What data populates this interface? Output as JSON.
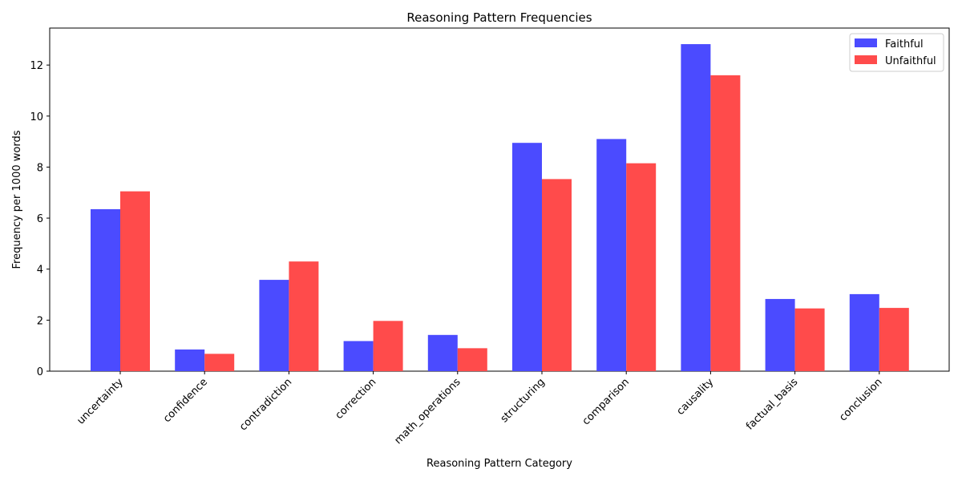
{
  "chart_data": {
    "type": "bar",
    "title": "Reasoning Pattern Frequencies",
    "xlabel": "Reasoning Pattern Category",
    "ylabel": "Frequency per 1000 words",
    "categories": [
      "uncertainty",
      "confidence",
      "contradiction",
      "correction",
      "math_operations",
      "structuring",
      "comparison",
      "causality",
      "factual_basis",
      "conclusion"
    ],
    "series": [
      {
        "name": "Faithful",
        "color": "#4b4bff",
        "values": [
          6.35,
          0.85,
          3.58,
          1.18,
          1.42,
          8.95,
          9.1,
          12.82,
          2.83,
          3.02
        ]
      },
      {
        "name": "Unfaithful",
        "color": "#ff4b4b",
        "values": [
          7.05,
          0.68,
          4.3,
          1.97,
          0.9,
          7.53,
          8.15,
          11.6,
          2.46,
          2.48
        ]
      }
    ],
    "ylim": [
      0,
      13.45
    ],
    "yticks": [
      0,
      2,
      4,
      6,
      8,
      10,
      12
    ],
    "xtick_rotation": 45,
    "grid": false,
    "legend_position": "top-right"
  }
}
